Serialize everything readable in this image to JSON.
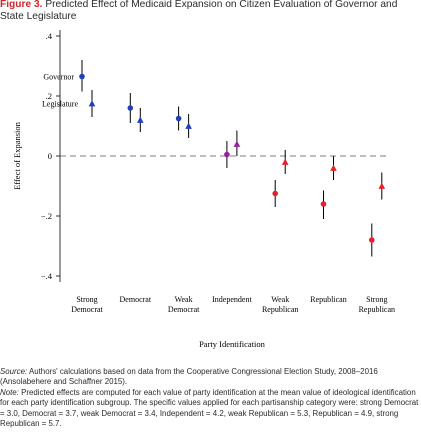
{
  "caption": {
    "figure_label": "Figure 3.",
    "title": "Predicted Effect of Medicaid Expansion on Citizen Evaluation of Governor and State Legislature"
  },
  "colors": {
    "figure_label": "#d2232a",
    "governor": "#1f3fbf",
    "legislature": "#1f3fbf",
    "independent": "#9b1ea0",
    "republican": "#e8202a",
    "intervals": "#000000",
    "zero_line": "#555555"
  },
  "chart_data": {
    "type": "scatter",
    "title": "",
    "xlabel": "Party Identification",
    "ylabel": "Effect of Expansion",
    "ylim": [
      -0.42,
      0.42
    ],
    "yticks": [
      0.4,
      0.2,
      0,
      -0.2,
      -0.4
    ],
    "ytick_labels": [
      ".4",
      ".2",
      "0",
      "−.2",
      "−.4"
    ],
    "zero_line": "dashed",
    "grid": false,
    "categories": [
      [
        "Strong",
        "Democrat"
      ],
      [
        "Democrat"
      ],
      [
        "Weak",
        "Democrat"
      ],
      [
        "Independent"
      ],
      [
        "Weak",
        "Republican"
      ],
      [
        "Republican"
      ],
      [
        "Strong",
        "Republican"
      ]
    ],
    "series": [
      {
        "name": "Governor",
        "marker": "circle",
        "values": [
          0.265,
          0.16,
          0.125,
          0.005,
          -0.125,
          -0.16,
          -0.28
        ],
        "lower": [
          0.215,
          0.11,
          0.085,
          -0.04,
          -0.17,
          -0.21,
          -0.335
        ],
        "upper": [
          0.32,
          0.21,
          0.165,
          0.05,
          -0.08,
          -0.115,
          -0.225
        ]
      },
      {
        "name": "Legislature",
        "marker": "triangle",
        "values": [
          0.175,
          0.12,
          0.1,
          0.04,
          -0.02,
          -0.04,
          -0.1
        ],
        "lower": [
          0.13,
          0.08,
          0.06,
          0.0,
          -0.06,
          -0.08,
          -0.145
        ],
        "upper": [
          0.22,
          0.16,
          0.14,
          0.085,
          0.02,
          0.0,
          -0.055
        ]
      }
    ],
    "series_colors_by_category": [
      "#1f3fbf",
      "#1f3fbf",
      "#1f3fbf",
      "#9b1ea0",
      "#e8202a",
      "#e8202a",
      "#e8202a"
    ],
    "annotations": [
      "Governor",
      "Legislature"
    ]
  },
  "notes": {
    "source_label": "Source:",
    "source_text": "Authors' calculations based on data from the Cooperative Congressional Election Study, 2008–2016 (Ansolabehere and Schaffner 2015).",
    "note_label": "Note:",
    "note_text": "Predicted effects are computed for each value of party identification at the mean value of ideological identification for each party identification subgroup. The specific values applied for each partisanship category were: strong Democrat = 3.0, Democrat = 3.7, weak Democrat = 3.4, Independent = 4.2, weak Republican = 5.3, Republican = 4.9, strong Republican = 5.7."
  }
}
